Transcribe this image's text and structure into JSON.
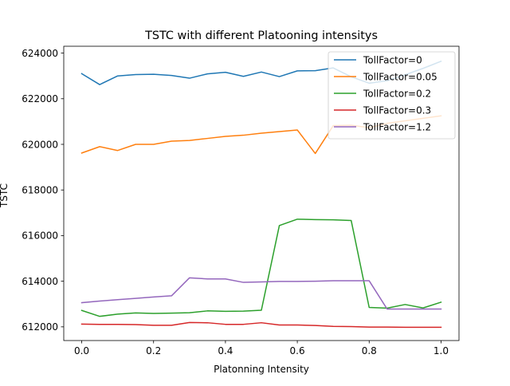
{
  "chart_data": {
    "type": "line",
    "title": "TSTC with different Platooning intensitys",
    "xlabel": "Platonning Intensity",
    "ylabel": "TSTC",
    "xlim": [
      -0.05,
      1.05
    ],
    "ylim": [
      611400,
      624300
    ],
    "xticks": [
      0.0,
      0.2,
      0.4,
      0.6,
      0.8,
      1.0
    ],
    "xtick_labels": [
      "0.0",
      "0.2",
      "0.4",
      "0.6",
      "0.8",
      "1.0"
    ],
    "yticks": [
      612000,
      614000,
      616000,
      618000,
      620000,
      622000,
      624000
    ],
    "ytick_labels": [
      "612000",
      "614000",
      "616000",
      "618000",
      "620000",
      "622000",
      "624000"
    ],
    "legend_position": "top-right",
    "grid": false,
    "x": [
      0.0,
      0.05,
      0.1,
      0.15,
      0.2,
      0.25,
      0.3,
      0.35,
      0.4,
      0.45,
      0.5,
      0.55,
      0.6,
      0.65,
      0.7,
      0.75,
      0.8,
      0.85,
      0.9,
      0.95,
      1.0
    ],
    "series": [
      {
        "name": "TollFactor=0",
        "color": "#1f77b4",
        "values": [
          623100,
          622620,
          623000,
          623060,
          623070,
          623020,
          622900,
          623090,
          623160,
          622980,
          623170,
          622970,
          623220,
          623230,
          623350,
          622960,
          622680,
          622790,
          623050,
          623330,
          623640
        ]
      },
      {
        "name": "TollFactor=0.05",
        "color": "#ff7f0e",
        "values": [
          619620,
          619900,
          619730,
          620000,
          620000,
          620140,
          620170,
          620260,
          620350,
          620400,
          620490,
          620560,
          620630,
          619600,
          620820,
          620840,
          620730,
          620920,
          621030,
          621140,
          621250
        ]
      },
      {
        "name": "TollFactor=0.2",
        "color": "#2ca02c",
        "values": [
          612720,
          612460,
          612560,
          612610,
          612590,
          612600,
          612620,
          612700,
          612680,
          612690,
          612730,
          616440,
          616720,
          616700,
          616690,
          616660,
          612850,
          612820,
          612980,
          612830,
          613080
        ]
      },
      {
        "name": "TollFactor=0.3",
        "color": "#d62728",
        "values": [
          612120,
          612110,
          612110,
          612100,
          612070,
          612070,
          612190,
          612180,
          612110,
          612110,
          612180,
          612080,
          612080,
          612060,
          612020,
          612010,
          611990,
          611990,
          611980,
          611980,
          611980
        ]
      },
      {
        "name": "TollFactor=1.2",
        "color": "#9467bd",
        "values": [
          613060,
          613130,
          613190,
          613250,
          613310,
          613360,
          614150,
          614100,
          614100,
          613950,
          613970,
          613990,
          613990,
          614000,
          614020,
          614020,
          614020,
          612780,
          612780,
          612780,
          612780
        ]
      }
    ]
  }
}
